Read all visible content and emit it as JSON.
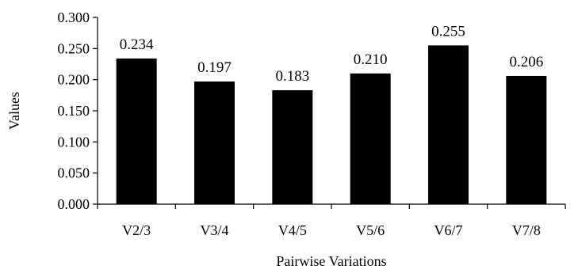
{
  "chart_data": {
    "type": "bar",
    "categories": [
      "V2/3",
      "V3/4",
      "V4/5",
      "V5/6",
      "V6/7",
      "V7/8"
    ],
    "values": [
      0.234,
      0.197,
      0.183,
      0.21,
      0.255,
      0.206
    ],
    "data_labels": [
      "0.234",
      "0.197",
      "0.183",
      "0.210",
      "0.255",
      "0.206"
    ],
    "xlabel": "Pairwise Variations",
    "ylabel": "Values",
    "ylim": [
      0,
      0.3
    ],
    "yticks": [
      0,
      0.05,
      0.1,
      0.15,
      0.2,
      0.25,
      0.3
    ],
    "ytick_labels": [
      "0.000",
      "0.050",
      "0.100",
      "0.150",
      "0.200",
      "0.250",
      "0.300"
    ],
    "grid": false,
    "legend": "none",
    "bar_color": "#000000"
  }
}
